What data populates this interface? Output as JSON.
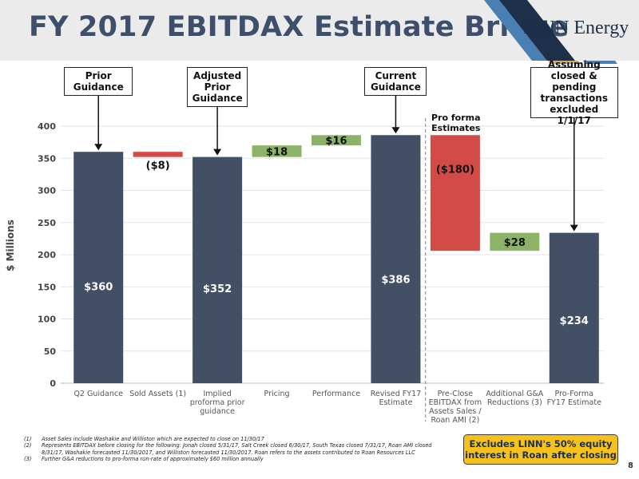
{
  "slide": {
    "title": "FY 2017 EBITDAX Estimate Bridge",
    "logo_text": "LINN Energy",
    "page_number": "8",
    "note_box": "Excludes LINN's 50% equity interest in Roan after closing",
    "pro_forma_label": [
      "Pro forma",
      "Estimates"
    ],
    "colors": {
      "accent_dark": "#3d4f6b",
      "bar_total": "#424f65",
      "bar_negative": "#d24b47",
      "bar_positive": "#8db368",
      "note_fill": "#f5c11a",
      "logo_stripe_blue": "#4a7fb3",
      "logo_stripe_gold": "#c9b070"
    }
  },
  "callouts": [
    {
      "id": "prior-guidance",
      "lines": [
        "Prior",
        "Guidance"
      ],
      "category_index": 0
    },
    {
      "id": "adjusted-prior-guidance",
      "lines": [
        "Adjusted",
        "Prior",
        "Guidance"
      ],
      "category_index": 2
    },
    {
      "id": "current-guidance",
      "lines": [
        "Current",
        "Guidance"
      ],
      "category_index": 5
    },
    {
      "id": "assuming-closed",
      "lines": [
        "Assuming",
        "closed & pending",
        "transactions",
        "excluded 1/1/17"
      ],
      "category_index": 8
    }
  ],
  "footnotes": [
    {
      "num": "(1)",
      "text": "Asset Sales include Washakie and Williston which are expected to close on 11/30/17"
    },
    {
      "num": "(2)",
      "text": "Represents EBITDAX before closing for the following: Jonah closed 5/31/17, Salt Creek closed 6/30/17, South Texas closed 7/31/17, Roan AMI closed 8/31/17, Washakie forecasted 11/30/2017, and Williston forecasted 11/30/2017. Roan refers to the assets contributed to Roan Resources LLC"
    },
    {
      "num": "(3)",
      "text": "Further G&A reductions to pro-forma run-rate of approximately $60 million annually"
    }
  ],
  "chart_data": {
    "type": "bar",
    "subtype": "waterfall",
    "ylabel": "$ Millions",
    "ylim": [
      0,
      400
    ],
    "yticks": [
      0,
      50,
      100,
      150,
      200,
      250,
      300,
      350,
      400
    ],
    "grid": true,
    "categories": [
      [
        "Q2 Guidance"
      ],
      [
        "Sold Assets (1)"
      ],
      [
        "Implied",
        "proforma prior",
        "guidance"
      ],
      [
        "Pricing"
      ],
      [
        "Performance"
      ],
      [
        "Revised FY17",
        "Estimate"
      ],
      [
        "Pre-Close",
        "EBITDAX from",
        "Assets Sales /",
        "Roan AMI (2)"
      ],
      [
        "Additional G&A",
        "Reductions (3)"
      ],
      [
        "Pro-Forma",
        "FY17 Estimate"
      ]
    ],
    "bars": [
      {
        "kind": "total",
        "start": 0,
        "end": 360,
        "label": "$360"
      },
      {
        "kind": "negative",
        "start": 360,
        "end": 352,
        "label": "($8)"
      },
      {
        "kind": "total",
        "start": 0,
        "end": 352,
        "label": "$352"
      },
      {
        "kind": "positive",
        "start": 352,
        "end": 370,
        "label": "$18"
      },
      {
        "kind": "positive",
        "start": 370,
        "end": 386,
        "label": "$16"
      },
      {
        "kind": "total",
        "start": 0,
        "end": 386,
        "label": "$386"
      },
      {
        "kind": "negative",
        "start": 386,
        "end": 206,
        "label": "($180)"
      },
      {
        "kind": "positive",
        "start": 206,
        "end": 234,
        "label": "$28"
      },
      {
        "kind": "total",
        "start": 0,
        "end": 234,
        "label": "$234"
      }
    ],
    "divider_after_index": 5
  }
}
